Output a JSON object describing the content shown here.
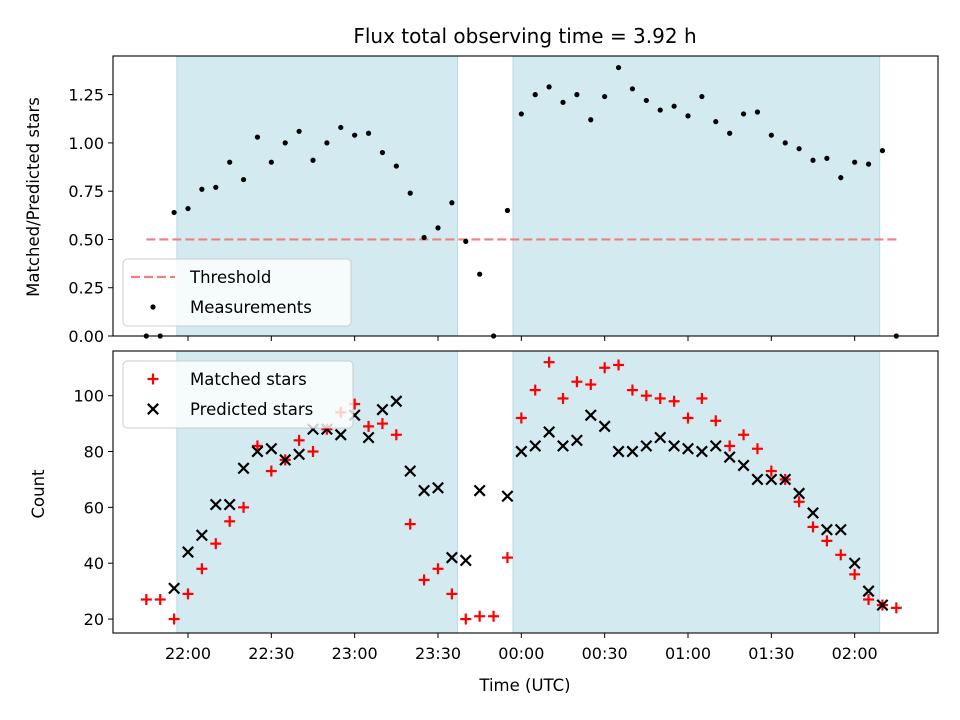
{
  "chart_data": [
    {
      "type": "scatter",
      "title": "Flux total observing time = 3.92 h",
      "xlabel": "",
      "ylabel": "Matched/Predicted stars",
      "x_unit": "time",
      "xlim": [
        "21:33",
        "02:30"
      ],
      "ylim": [
        0,
        1.45
      ],
      "yticks": [
        "0.00",
        "0.25",
        "0.50",
        "0.75",
        "1.00",
        "1.25"
      ],
      "shaded_intervals": [
        [
          "21:56",
          "23:37"
        ],
        [
          "23:57",
          "02:09"
        ]
      ],
      "threshold": {
        "label": "Threshold",
        "value": 0.5,
        "x_start": "21:45",
        "x_end": "02:15",
        "color": "#f08080"
      },
      "series": [
        {
          "name": "Measurements",
          "marker": "dot",
          "color": "#000000",
          "x": [
            "21:45",
            "21:50",
            "21:55",
            "22:00",
            "22:05",
            "22:10",
            "22:15",
            "22:20",
            "22:25",
            "22:30",
            "22:35",
            "22:40",
            "22:45",
            "22:50",
            "22:55",
            "23:00",
            "23:05",
            "23:10",
            "23:15",
            "23:20",
            "23:25",
            "23:30",
            "23:35",
            "23:40",
            "23:45",
            "23:50",
            "23:55",
            "00:00",
            "00:05",
            "00:10",
            "00:15",
            "00:20",
            "00:25",
            "00:30",
            "00:35",
            "00:40",
            "00:45",
            "00:50",
            "00:55",
            "01:00",
            "01:05",
            "01:10",
            "01:15",
            "01:20",
            "01:25",
            "01:30",
            "01:35",
            "01:40",
            "01:45",
            "01:50",
            "01:55",
            "02:00",
            "02:05",
            "02:10",
            "02:15"
          ],
          "y": [
            0.0,
            0.0,
            0.64,
            0.66,
            0.76,
            0.77,
            0.9,
            0.81,
            1.03,
            0.9,
            1.0,
            1.06,
            0.91,
            1.0,
            1.08,
            1.04,
            1.05,
            0.95,
            0.88,
            0.74,
            0.51,
            0.56,
            0.69,
            0.49,
            0.32,
            0.0,
            0.65,
            1.15,
            1.25,
            1.29,
            1.21,
            1.25,
            1.12,
            1.24,
            1.39,
            1.28,
            1.22,
            1.17,
            1.19,
            1.14,
            1.24,
            1.11,
            1.05,
            1.15,
            1.16,
            1.04,
            1.0,
            0.97,
            0.91,
            0.92,
            0.82,
            0.9,
            0.89,
            0.96,
            0.0
          ]
        }
      ],
      "legend": {
        "position": "lower-left",
        "entries": [
          "Threshold",
          "Measurements"
        ]
      }
    },
    {
      "type": "scatter",
      "title": "",
      "xlabel": "Time (UTC)",
      "ylabel": "Count",
      "x_unit": "time",
      "xlim": [
        "21:33",
        "02:30"
      ],
      "ylim": [
        15,
        116
      ],
      "yticks": [
        "20",
        "40",
        "60",
        "80",
        "100"
      ],
      "xticks": [
        "22:00",
        "22:30",
        "23:00",
        "23:30",
        "00:00",
        "00:30",
        "01:00",
        "01:30",
        "02:00"
      ],
      "shaded_intervals": [
        [
          "21:56",
          "23:37"
        ],
        [
          "23:57",
          "02:09"
        ]
      ],
      "series": [
        {
          "name": "Matched stars",
          "marker": "plus",
          "color": "#ff0000",
          "x": [
            "21:45",
            "21:50",
            "21:55",
            "22:00",
            "22:05",
            "22:10",
            "22:15",
            "22:20",
            "22:25",
            "22:30",
            "22:35",
            "22:40",
            "22:45",
            "22:50",
            "22:55",
            "23:00",
            "23:05",
            "23:10",
            "23:15",
            "23:20",
            "23:25",
            "23:30",
            "23:35",
            "23:40",
            "23:45",
            "23:50",
            "23:55",
            "00:00",
            "00:05",
            "00:10",
            "00:15",
            "00:20",
            "00:25",
            "00:30",
            "00:35",
            "00:40",
            "00:45",
            "00:50",
            "00:55",
            "01:00",
            "01:05",
            "01:10",
            "01:15",
            "01:20",
            "01:25",
            "01:30",
            "01:35",
            "01:40",
            "01:45",
            "01:50",
            "01:55",
            "02:00",
            "02:05",
            "02:10",
            "02:15"
          ],
          "y": [
            27,
            27,
            20,
            29,
            38,
            47,
            55,
            60,
            82,
            73,
            77,
            84,
            80,
            88,
            94,
            97,
            89,
            90,
            86,
            54,
            34,
            38,
            29,
            20,
            21,
            21,
            42,
            92,
            102,
            112,
            99,
            105,
            104,
            110,
            111,
            102,
            100,
            99,
            98,
            92,
            99,
            91,
            82,
            86,
            81,
            73,
            70,
            62,
            53,
            48,
            43,
            36,
            27,
            25,
            24
          ]
        },
        {
          "name": "Predicted stars",
          "marker": "x",
          "color": "#000000",
          "x": [
            "21:55",
            "22:00",
            "22:05",
            "22:10",
            "22:15",
            "22:20",
            "22:25",
            "22:30",
            "22:35",
            "22:40",
            "22:45",
            "22:50",
            "22:55",
            "23:00",
            "23:05",
            "23:10",
            "23:15",
            "23:20",
            "23:25",
            "23:30",
            "23:35",
            "23:40",
            "23:45",
            "23:55",
            "00:00",
            "00:05",
            "00:10",
            "00:15",
            "00:20",
            "00:25",
            "00:30",
            "00:35",
            "00:40",
            "00:45",
            "00:50",
            "00:55",
            "01:00",
            "01:05",
            "01:10",
            "01:15",
            "01:20",
            "01:25",
            "01:30",
            "01:35",
            "01:40",
            "01:45",
            "01:50",
            "01:55",
            "02:00",
            "02:05",
            "02:10"
          ],
          "y": [
            31,
            44,
            50,
            61,
            61,
            74,
            80,
            81,
            77,
            79,
            88,
            88,
            86,
            93,
            85,
            95,
            98,
            73,
            66,
            67,
            42,
            41,
            66,
            64,
            80,
            82,
            87,
            82,
            84,
            93,
            89,
            80,
            80,
            82,
            85,
            82,
            81,
            80,
            82,
            78,
            75,
            70,
            70,
            70,
            65,
            58,
            52,
            52,
            40,
            30,
            25
          ]
        }
      ],
      "legend": {
        "position": "upper-left",
        "entries": [
          "Matched stars",
          "Predicted stars"
        ]
      }
    }
  ]
}
